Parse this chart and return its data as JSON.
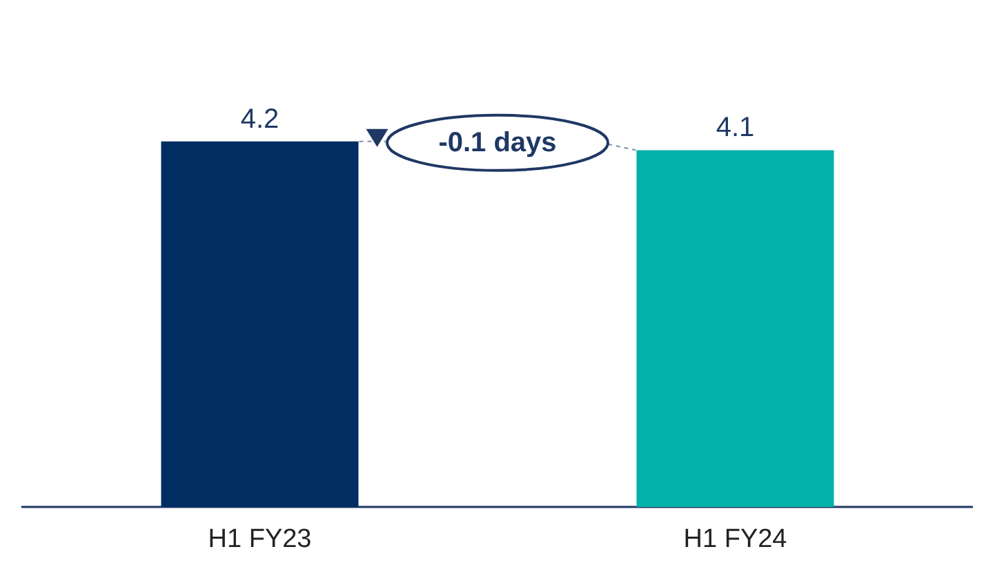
{
  "chart_data": {
    "type": "bar",
    "categories": [
      "H1 FY23",
      "H1 FY24"
    ],
    "values": [
      4.2,
      4.1
    ],
    "colors": [
      "#002d62",
      "#00b2a9"
    ],
    "data_labels": true,
    "annotations": [
      "-0.1 days"
    ]
  }
}
